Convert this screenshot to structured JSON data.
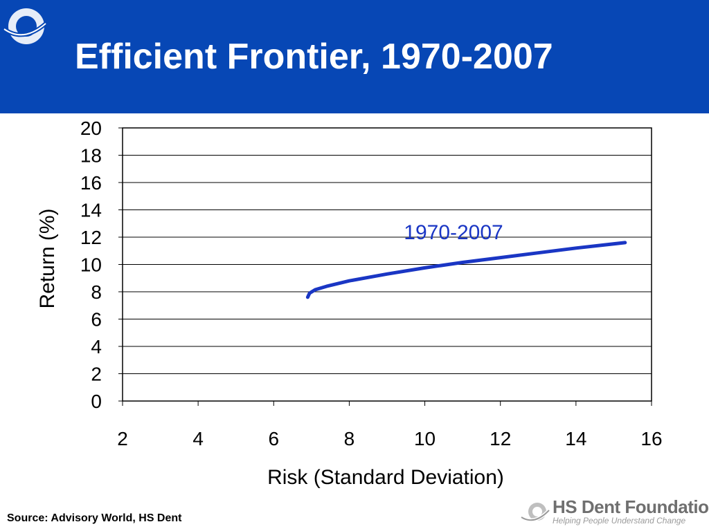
{
  "header": {
    "title": "Efficient Frontier, 1970-2007",
    "background_color": "#0747b5"
  },
  "footer": {
    "source": "Source: Advisory World, HS Dent",
    "brand_name": "HS Dent Foundation",
    "brand_tagline": "Helping People Understand Change"
  },
  "chart_data": {
    "type": "line",
    "xlabel": "Risk (Standard Deviation)",
    "ylabel": "Return (%)",
    "xlim": [
      2,
      16
    ],
    "ylim": [
      0,
      20
    ],
    "xticks": [
      2,
      4,
      6,
      8,
      10,
      12,
      14,
      16
    ],
    "yticks": [
      0,
      2,
      4,
      6,
      8,
      10,
      12,
      14,
      16,
      18,
      20
    ],
    "grid": {
      "horizontal": true,
      "vertical": false
    },
    "series": [
      {
        "name": "1970-2007",
        "color": "#1a36c4",
        "x": [
          6.9,
          6.95,
          7.1,
          7.4,
          8.0,
          9.0,
          10.0,
          11.0,
          12.0,
          13.0,
          14.0,
          15.3
        ],
        "y": [
          7.6,
          7.9,
          8.15,
          8.4,
          8.8,
          9.3,
          9.75,
          10.15,
          10.5,
          10.85,
          11.2,
          11.6
        ]
      }
    ],
    "annotations": [
      {
        "text": "1970-2007",
        "x": 11.4,
        "y": 12.4,
        "color": "#1a36c4"
      }
    ]
  }
}
